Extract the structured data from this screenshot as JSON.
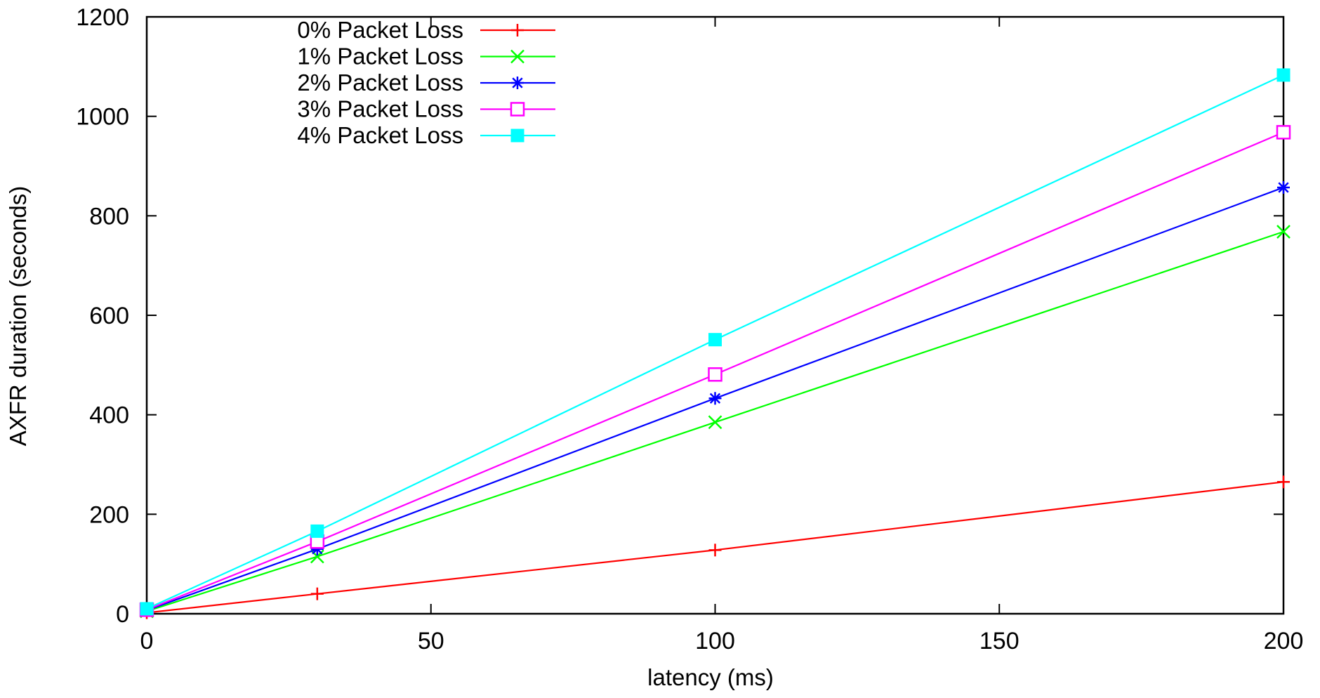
{
  "chart_data": {
    "type": "line",
    "title": "",
    "xlabel": "latency (ms)",
    "ylabel": "AXFR duration (seconds)",
    "xlim": [
      0,
      200
    ],
    "ylim": [
      0,
      1200
    ],
    "xticks": [
      0,
      50,
      100,
      150,
      200
    ],
    "yticks": [
      0,
      200,
      400,
      600,
      800,
      1000,
      1200
    ],
    "grid": false,
    "legend_position": "top-left",
    "x": [
      0,
      30,
      100,
      200
    ],
    "series": [
      {
        "name": "0% Packet Loss",
        "color": "#ff0000",
        "marker": "plus",
        "values": [
          2,
          40,
          128,
          265
        ]
      },
      {
        "name": "1% Packet Loss",
        "color": "#00ff00",
        "marker": "cross",
        "values": [
          5,
          115,
          385,
          768
        ]
      },
      {
        "name": "2% Packet Loss",
        "color": "#0000ff",
        "marker": "star",
        "values": [
          7,
          130,
          433,
          857
        ]
      },
      {
        "name": "3% Packet Loss",
        "color": "#ff00ff",
        "marker": "open-square",
        "values": [
          8,
          145,
          481,
          968
        ]
      },
      {
        "name": "4% Packet Loss",
        "color": "#00ffff",
        "marker": "filled-square",
        "values": [
          10,
          166,
          551,
          1083
        ]
      }
    ]
  }
}
